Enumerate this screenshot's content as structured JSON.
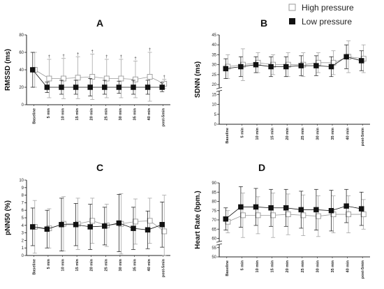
{
  "legend": {
    "position": "top-right",
    "entries": [
      {
        "label": "High pressure",
        "marker": "open-square"
      },
      {
        "label": "Low pressure",
        "marker": "filled-square"
      }
    ]
  },
  "colors": {
    "high": "#9a9a9a",
    "low": "#111111",
    "axis": "#222222"
  },
  "chart_data": [
    {
      "panel": "A",
      "type": "line",
      "ylabel": "RMSSD (ms)",
      "ylim": [
        0,
        80
      ],
      "yticks": [
        0,
        20,
        40,
        60,
        80
      ],
      "categories": [
        "Baseline",
        "5 min",
        "10 min",
        "15 min",
        "20 min",
        "25 min",
        "30 min",
        "35 min",
        "40 min",
        "post-5min"
      ],
      "annotations": [
        "",
        "†",
        "†",
        "†",
        "†",
        "†",
        "†",
        "†",
        "†",
        "†"
      ],
      "grid": false,
      "series": [
        {
          "name": "High pressure",
          "values": [
            40,
            30,
            30,
            31,
            32,
            30,
            30,
            29,
            32,
            24
          ],
          "err": [
            20,
            22,
            23,
            24,
            26,
            22,
            22,
            21,
            28,
            5
          ]
        },
        {
          "name": "Low pressure",
          "values": [
            40,
            20,
            20,
            20,
            20,
            20,
            20,
            20,
            20,
            20
          ],
          "err": [
            20,
            6,
            8,
            8,
            10,
            8,
            7,
            8,
            8,
            5
          ]
        }
      ]
    },
    {
      "panel": "B",
      "type": "line",
      "ylabel": "SDNN (ms)",
      "ylim": [
        0,
        45
      ],
      "axis_break": [
        15,
        20
      ],
      "yticks": [
        0,
        5,
        10,
        15,
        20,
        25,
        30,
        35,
        40,
        45
      ],
      "categories": [
        "Baseline",
        "5 min",
        "10 min",
        "15 min",
        "20 min",
        "25 min",
        "30 min",
        "35 min",
        "40 min",
        "post-5min"
      ],
      "grid": false,
      "series": [
        {
          "name": "High pressure",
          "values": [
            29,
            30,
            31,
            30,
            30,
            30,
            31,
            31,
            34,
            33
          ],
          "err": [
            6,
            8,
            5,
            5,
            6,
            6,
            5,
            6,
            8,
            7
          ]
        },
        {
          "name": "Low pressure",
          "values": [
            28,
            29,
            30,
            29,
            29,
            29.5,
            29.5,
            29,
            34,
            32
          ],
          "err": [
            5,
            5,
            4,
            5,
            5,
            5,
            5,
            5,
            6,
            5
          ]
        }
      ]
    },
    {
      "panel": "C",
      "type": "line",
      "ylabel": "pNN50 (%)",
      "ylim": [
        0,
        10
      ],
      "yticks": [
        0,
        1,
        2,
        3,
        4,
        5,
        6,
        7,
        8,
        9,
        10
      ],
      "categories": [
        "Baseline",
        "5 min",
        "10 min",
        "15 min",
        "20 min",
        "25 min",
        "30 min",
        "35 min",
        "40 min",
        "post-5min"
      ],
      "grid": false,
      "series": [
        {
          "name": "High pressure",
          "values": [
            3.8,
            3.6,
            4.2,
            4.2,
            4.6,
            4.0,
            4.2,
            4.5,
            4.6,
            3.2
          ],
          "err": [
            3.5,
            2.6,
            3.6,
            3.4,
            3.0,
            2.8,
            4.0,
            3.0,
            3.0,
            4.8
          ]
        },
        {
          "name": "Low pressure",
          "values": [
            3.8,
            3.5,
            4.1,
            4.1,
            3.8,
            3.9,
            4.3,
            3.6,
            3.4,
            4.1
          ],
          "err": [
            2.5,
            2.5,
            3.5,
            2.8,
            3.0,
            2.5,
            3.8,
            2.8,
            2.5,
            3.0
          ]
        }
      ]
    },
    {
      "panel": "D",
      "type": "line",
      "ylabel": "Heart Rate (bpm.)",
      "ylim": [
        50,
        90
      ],
      "axis_break": [
        55,
        60
      ],
      "yticks": [
        50,
        55,
        60,
        65,
        70,
        75,
        80,
        85,
        90
      ],
      "categories": [
        "Baseline",
        "5 min",
        "10 min",
        "15 min",
        "20 min",
        "25 min",
        "30 min",
        "35 min",
        "40 min",
        "post-5min"
      ],
      "grid": false,
      "series": [
        {
          "name": "High pressure",
          "values": [
            69,
            72.5,
            72.5,
            72.5,
            73,
            72.5,
            72,
            73,
            73,
            73
          ],
          "err": [
            6,
            12,
            10,
            12,
            11,
            11,
            11,
            10,
            10,
            8
          ]
        },
        {
          "name": "Low pressure",
          "values": [
            70.5,
            77,
            77,
            76.5,
            76.5,
            75.5,
            75.5,
            75,
            77.5,
            76
          ],
          "err": [
            6,
            11,
            10,
            10,
            10,
            10,
            11,
            11,
            9,
            9
          ]
        }
      ]
    }
  ]
}
